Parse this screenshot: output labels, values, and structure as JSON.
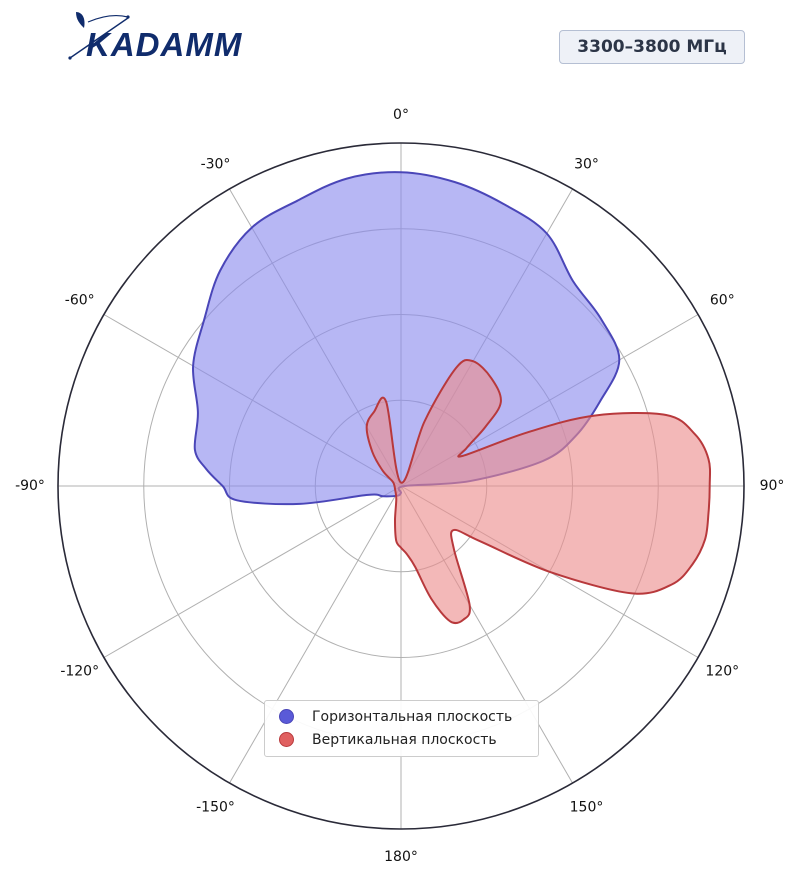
{
  "brand": {
    "logo_text": "KADAMM",
    "logo_color": "#102c6c"
  },
  "band": {
    "label": "3300–3800 МГц"
  },
  "chart_data": {
    "type": "polar",
    "title": "",
    "theta_zero_location": "top",
    "theta_direction": "clockwise",
    "angle_tick_labels": [
      {
        "angle": 0,
        "label": "0°"
      },
      {
        "angle": 30,
        "label": "30°"
      },
      {
        "angle": 60,
        "label": "60°"
      },
      {
        "angle": 90,
        "label": "90°"
      },
      {
        "angle": 120,
        "label": "120°"
      },
      {
        "angle": 150,
        "label": "150°"
      },
      {
        "angle": 180,
        "label": "180°"
      },
      {
        "angle": -150,
        "label": "-150°"
      },
      {
        "angle": -120,
        "label": "-120°"
      },
      {
        "angle": -90,
        "label": "-90°"
      },
      {
        "angle": -60,
        "label": "-60°"
      },
      {
        "angle": -30,
        "label": "-30°"
      }
    ],
    "radial_gridlines": [
      0.25,
      0.5,
      0.75
    ],
    "rlim": [
      0,
      1
    ],
    "radial_tick_labels_visible": false,
    "grid": true,
    "legend_position": "bottom-center",
    "series": [
      {
        "name": "Горизонтальная плоскость",
        "color": "#5a5ad8",
        "fill_color": "#8a8aee",
        "edge_color": "#4a46b8",
        "points": [
          {
            "angle": 0,
            "r": 0.915
          },
          {
            "angle": 10,
            "r": 0.9
          },
          {
            "angle": 20,
            "r": 0.875
          },
          {
            "angle": 30,
            "r": 0.85
          },
          {
            "angle": 40,
            "r": 0.78
          },
          {
            "angle": 50,
            "r": 0.76
          },
          {
            "angle": 60,
            "r": 0.735
          },
          {
            "angle": 67,
            "r": 0.63
          },
          {
            "angle": 74,
            "r": 0.53
          },
          {
            "angle": 80,
            "r": 0.42
          },
          {
            "angle": 86,
            "r": 0.2
          },
          {
            "angle": 90,
            "r": 0.01
          },
          {
            "angle": 180,
            "r": 0.02
          },
          {
            "angle": 200,
            "r": 0.03
          },
          {
            "angle": 240,
            "r": 0.06
          },
          {
            "angle": 255,
            "r": 0.1
          },
          {
            "angle": 260,
            "r": 0.3
          },
          {
            "angle": 265,
            "r": 0.48
          },
          {
            "angle": 270,
            "r": 0.52
          },
          {
            "angle": 275,
            "r": 0.57
          },
          {
            "angle": 280,
            "r": 0.61
          },
          {
            "angle": 290,
            "r": 0.63
          },
          {
            "angle": 300,
            "r": 0.7
          },
          {
            "angle": 310,
            "r": 0.75
          },
          {
            "angle": 320,
            "r": 0.82
          },
          {
            "angle": 330,
            "r": 0.87
          },
          {
            "angle": 340,
            "r": 0.885
          },
          {
            "angle": 350,
            "r": 0.91
          }
        ]
      },
      {
        "name": "Вертикальная плоскость",
        "color": "#e06060",
        "fill_color": "#ec8c8c",
        "edge_color": "#b8393c",
        "points": [
          {
            "angle": 0,
            "r": 0.01
          },
          {
            "angle": 20,
            "r": 0.2
          },
          {
            "angle": 25,
            "r": 0.38
          },
          {
            "angle": 30,
            "r": 0.42
          },
          {
            "angle": 40,
            "r": 0.41
          },
          {
            "angle": 50,
            "r": 0.38
          },
          {
            "angle": 55,
            "r": 0.3
          },
          {
            "angle": 60,
            "r": 0.22
          },
          {
            "angle": 64,
            "r": 0.2
          },
          {
            "angle": 67,
            "r": 0.4
          },
          {
            "angle": 70,
            "r": 0.6
          },
          {
            "angle": 75,
            "r": 0.8
          },
          {
            "angle": 80,
            "r": 0.87
          },
          {
            "angle": 85,
            "r": 0.9
          },
          {
            "angle": 90,
            "r": 0.9
          },
          {
            "angle": 95,
            "r": 0.9
          },
          {
            "angle": 100,
            "r": 0.9
          },
          {
            "angle": 105,
            "r": 0.88
          },
          {
            "angle": 110,
            "r": 0.84
          },
          {
            "angle": 115,
            "r": 0.74
          },
          {
            "angle": 120,
            "r": 0.5
          },
          {
            "angle": 125,
            "r": 0.28
          },
          {
            "angle": 130,
            "r": 0.2
          },
          {
            "angle": 140,
            "r": 0.24
          },
          {
            "angle": 150,
            "r": 0.4
          },
          {
            "angle": 155,
            "r": 0.43
          },
          {
            "angle": 160,
            "r": 0.42
          },
          {
            "angle": 165,
            "r": 0.34
          },
          {
            "angle": 170,
            "r": 0.24
          },
          {
            "angle": 175,
            "r": 0.2
          },
          {
            "angle": 180,
            "r": 0.18
          },
          {
            "angle": 185,
            "r": 0.16
          },
          {
            "angle": 190,
            "r": 0.1
          },
          {
            "angle": 200,
            "r": 0.04
          },
          {
            "angle": 240,
            "r": 0.02
          },
          {
            "angle": 280,
            "r": 0.02
          },
          {
            "angle": 300,
            "r": 0.03
          },
          {
            "angle": 310,
            "r": 0.07
          },
          {
            "angle": 320,
            "r": 0.13
          },
          {
            "angle": 330,
            "r": 0.2
          },
          {
            "angle": 340,
            "r": 0.23
          },
          {
            "angle": 350,
            "r": 0.25
          }
        ]
      }
    ]
  }
}
